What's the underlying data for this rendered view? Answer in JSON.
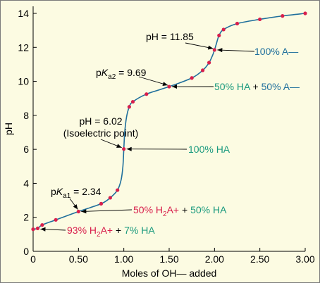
{
  "chart_data": {
    "type": "line",
    "xlabel": "Moles of OH— added",
    "ylabel": "pH",
    "xlim": [
      0,
      3.0
    ],
    "ylim": [
      0,
      14
    ],
    "x_ticks": [
      "0",
      "0.50",
      "1.00",
      "1.50",
      "2.00",
      "2.50",
      "3.00"
    ],
    "y_ticks": [
      "0",
      "2",
      "4",
      "6",
      "8",
      "10",
      "12",
      "14"
    ],
    "grid": false,
    "colors": {
      "curve": "#1f6f9c",
      "points": "#d81f4c",
      "teal": "#1b9a7e",
      "magenta": "#d81f4c",
      "blue": "#1f6f9c",
      "background": "#fcfbe2"
    },
    "curve_points": [
      {
        "x": 0.0,
        "y": 1.3
      },
      {
        "x": 0.05,
        "y": 1.35
      },
      {
        "x": 0.1,
        "y": 1.55
      },
      {
        "x": 0.25,
        "y": 1.85
      },
      {
        "x": 0.5,
        "y": 2.34
      },
      {
        "x": 0.75,
        "y": 2.8
      },
      {
        "x": 0.85,
        "y": 3.15
      },
      {
        "x": 0.93,
        "y": 3.6
      },
      {
        "x": 0.97,
        "y": 4.2
      },
      {
        "x": 0.99,
        "y": 5.0
      },
      {
        "x": 1.0,
        "y": 6.02
      },
      {
        "x": 1.01,
        "y": 7.0
      },
      {
        "x": 1.03,
        "y": 7.9
      },
      {
        "x": 1.06,
        "y": 8.5
      },
      {
        "x": 1.1,
        "y": 8.8
      },
      {
        "x": 1.25,
        "y": 9.25
      },
      {
        "x": 1.5,
        "y": 9.69
      },
      {
        "x": 1.75,
        "y": 10.2
      },
      {
        "x": 1.87,
        "y": 10.65
      },
      {
        "x": 1.94,
        "y": 11.1
      },
      {
        "x": 1.98,
        "y": 11.55
      },
      {
        "x": 2.0,
        "y": 11.85
      },
      {
        "x": 2.02,
        "y": 12.2
      },
      {
        "x": 2.05,
        "y": 12.7
      },
      {
        "x": 2.1,
        "y": 13.05
      },
      {
        "x": 2.25,
        "y": 13.4
      },
      {
        "x": 2.5,
        "y": 13.65
      },
      {
        "x": 2.75,
        "y": 13.85
      },
      {
        "x": 3.0,
        "y": 14.0
      }
    ],
    "marked_points": [
      {
        "x": 0.0,
        "y": 1.3
      },
      {
        "x": 0.05,
        "y": 1.35
      },
      {
        "x": 0.1,
        "y": 1.55
      },
      {
        "x": 0.25,
        "y": 1.85
      },
      {
        "x": 0.5,
        "y": 2.34
      },
      {
        "x": 0.75,
        "y": 2.8
      },
      {
        "x": 0.85,
        "y": 3.15
      },
      {
        "x": 0.93,
        "y": 3.6
      },
      {
        "x": 1.0,
        "y": 6.02
      },
      {
        "x": 1.06,
        "y": 8.5
      },
      {
        "x": 1.1,
        "y": 8.8
      },
      {
        "x": 1.25,
        "y": 9.25
      },
      {
        "x": 1.5,
        "y": 9.69
      },
      {
        "x": 1.75,
        "y": 10.2
      },
      {
        "x": 1.87,
        "y": 10.65
      },
      {
        "x": 1.94,
        "y": 11.1
      },
      {
        "x": 2.0,
        "y": 11.85
      },
      {
        "x": 2.05,
        "y": 12.7
      },
      {
        "x": 2.1,
        "y": 13.05
      },
      {
        "x": 2.25,
        "y": 13.4
      },
      {
        "x": 2.5,
        "y": 13.65
      },
      {
        "x": 2.75,
        "y": 13.85
      },
      {
        "x": 3.0,
        "y": 14.0
      }
    ],
    "annotations": {
      "ph_1185": "pH = 11.85",
      "pka2_p": "p",
      "pka2_k": "K",
      "pka2_sub": "a2",
      "pka2_val": " = 9.69",
      "ph_602": "pH = 6.02",
      "isoelectric": "(Isoelectric point)",
      "pka1_p": "p",
      "pka1_k": "K",
      "pka1_sub": "a1",
      "pka1_val": " = 2.34"
    },
    "labels": {
      "a_minus": "100% A—",
      "ha_a_1": "50% HA",
      "ha_a_2": " + ",
      "ha_a_3": "50% A—",
      "ha_100": "100% HA",
      "h2a_ha_1": "50% H",
      "h2a_ha_2": "2",
      "h2a_ha_3": "A+",
      "h2a_ha_4": " + ",
      "h2a_ha_5": "50% HA",
      "h2a_93_1": "93% H",
      "h2a_93_2": "2",
      "h2a_93_3": "A+",
      "h2a_93_4": " + ",
      "h2a_93_5": "7% HA"
    }
  }
}
